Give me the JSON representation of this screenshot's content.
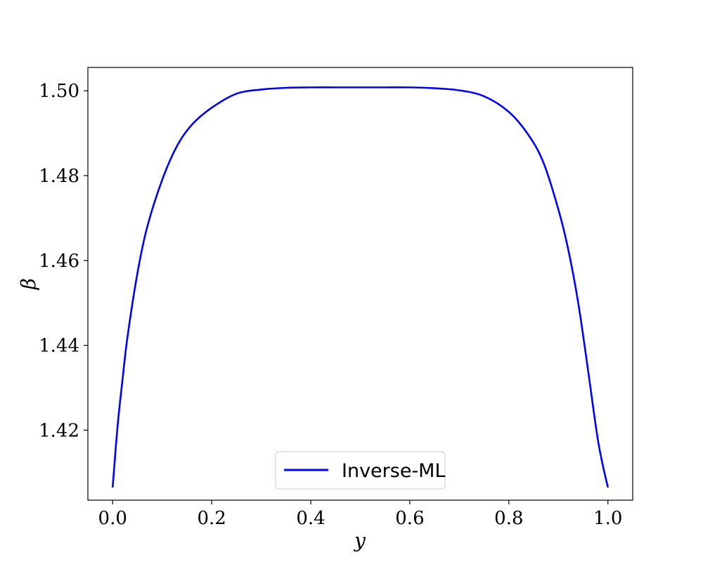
{
  "chart_data": {
    "type": "line",
    "title": "",
    "xlabel": "y",
    "ylabel": "β",
    "xlim": [
      -0.05,
      1.05
    ],
    "ylim": [
      1.4035,
      1.5055
    ],
    "xticks": [
      0.0,
      0.2,
      0.4,
      0.6,
      0.8,
      1.0
    ],
    "xtick_labels": [
      "0.0",
      "0.2",
      "0.4",
      "0.6",
      "0.8",
      "1.0"
    ],
    "yticks": [
      1.42,
      1.44,
      1.46,
      1.48,
      1.5
    ],
    "ytick_labels": [
      "1.42",
      "1.44",
      "1.46",
      "1.48",
      "1.50"
    ],
    "grid": false,
    "legend": {
      "position": "lower-center"
    },
    "series": [
      {
        "name": "Inverse-ML",
        "color": "#0000ff",
        "x": [
          0.0,
          0.01,
          0.02,
          0.03,
          0.05,
          0.07,
          0.1,
          0.13,
          0.16,
          0.2,
          0.25,
          0.3,
          0.35,
          0.4,
          0.45,
          0.5,
          0.55,
          0.6,
          0.65,
          0.7,
          0.75,
          0.8,
          0.84,
          0.87,
          0.9,
          0.92,
          0.94,
          0.96,
          0.97,
          0.98,
          0.99,
          1.0
        ],
        "y": [
          1.4065,
          1.421,
          1.432,
          1.442,
          1.457,
          1.468,
          1.479,
          1.487,
          1.492,
          1.496,
          1.4993,
          1.5003,
          1.5007,
          1.5008,
          1.5008,
          1.5008,
          1.5008,
          1.5008,
          1.5006,
          1.5001,
          1.4987,
          1.495,
          1.4895,
          1.483,
          1.472,
          1.4625,
          1.45,
          1.434,
          1.4255,
          1.4175,
          1.4115,
          1.4065
        ]
      }
    ]
  }
}
